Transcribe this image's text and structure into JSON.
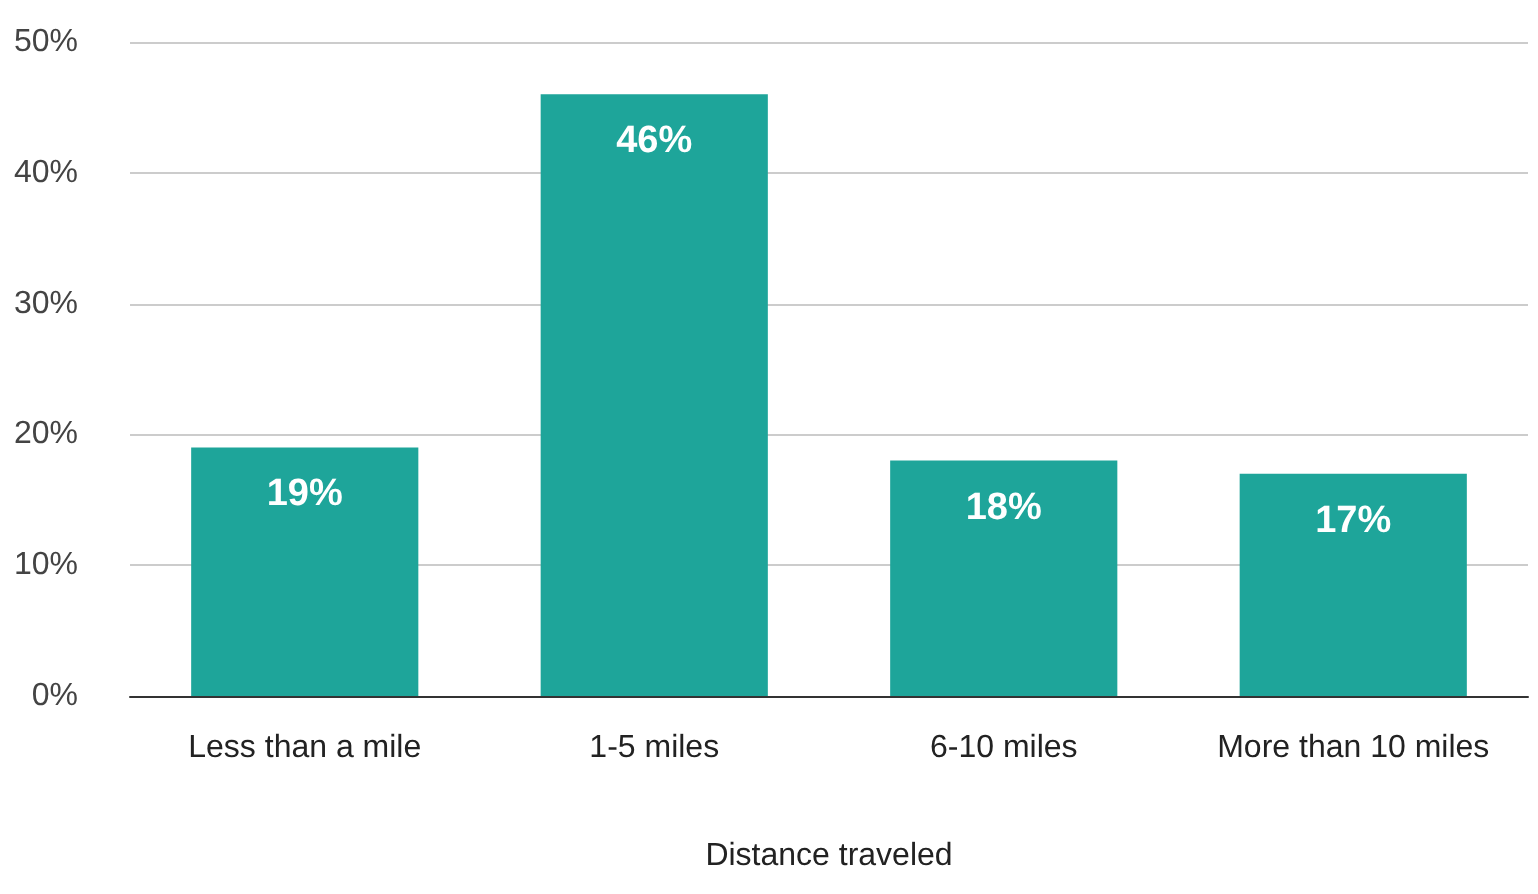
{
  "chart_data": {
    "type": "bar",
    "xlabel": "Distance traveled",
    "categories": [
      "Less than a mile",
      "1-5 miles",
      "6-10 miles",
      "More than 10 miles"
    ],
    "values": [
      19,
      46,
      18,
      17
    ],
    "color": "#1ea59a",
    "value_labels": [
      "19%",
      "46%",
      "18%",
      "17%"
    ],
    "ylim": [
      0,
      50
    ],
    "yticks": [
      {
        "value": 0,
        "label": "0%"
      },
      {
        "value": 10,
        "label": "10%"
      },
      {
        "value": 20,
        "label": "20%"
      },
      {
        "value": 30,
        "label": "30%"
      },
      {
        "value": 40,
        "label": "40%"
      },
      {
        "value": 50,
        "label": "50%"
      }
    ],
    "grid": "y",
    "legend": false
  }
}
